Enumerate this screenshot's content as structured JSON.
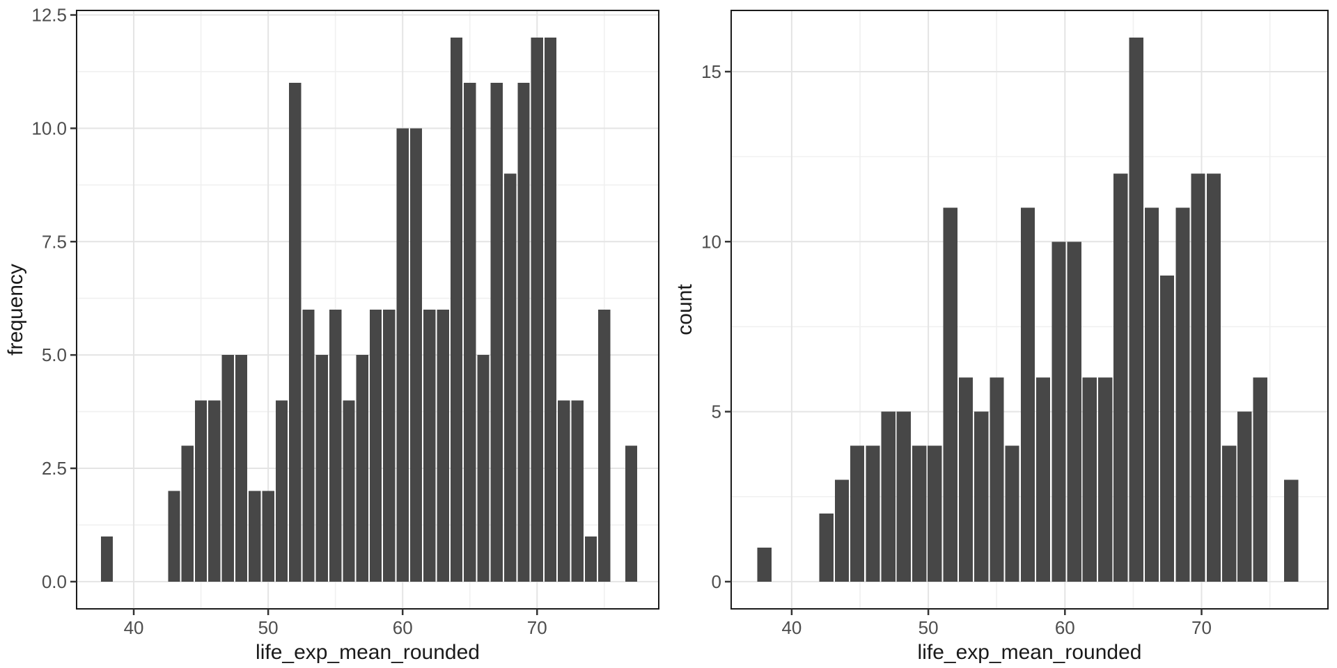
{
  "theme": {
    "background": "#ffffff",
    "bar_color": "#474747",
    "panel_border": "#1a1a1a",
    "grid_major": "#e4e4e4",
    "grid_minor": "#f0f0f0",
    "tick_mark_color": "#333333",
    "tick_label_color": "#4d4d4d",
    "axis_title_color": "#1a1a1a"
  },
  "chart_data": [
    {
      "type": "bar",
      "subtype": "histogram",
      "title": "",
      "xlabel": "life_exp_mean_rounded",
      "ylabel": "frequency",
      "grid": true,
      "legend": false,
      "binwidth": 1,
      "x_domain": [
        35.75,
        79.05
      ],
      "y_domain": [
        -0.6,
        12.6
      ],
      "x_ticks": [
        {
          "v": 40,
          "label": "40"
        },
        {
          "v": 50,
          "label": "50"
        },
        {
          "v": 60,
          "label": "60"
        },
        {
          "v": 70,
          "label": "70"
        }
      ],
      "x_minor": [
        45,
        55,
        65,
        75
      ],
      "y_ticks": [
        {
          "v": 0,
          "label": "0.0"
        },
        {
          "v": 2.5,
          "label": "2.5"
        },
        {
          "v": 5,
          "label": "5.0"
        },
        {
          "v": 7.5,
          "label": "7.5"
        },
        {
          "v": 10,
          "label": "10.0"
        },
        {
          "v": 12.5,
          "label": "12.5"
        }
      ],
      "y_minor": [
        1.25,
        3.75,
        6.25,
        8.75,
        11.25
      ],
      "bars": [
        {
          "x": 38,
          "count": 1
        },
        {
          "x": 43,
          "count": 2
        },
        {
          "x": 44,
          "count": 3
        },
        {
          "x": 45,
          "count": 4
        },
        {
          "x": 46,
          "count": 4
        },
        {
          "x": 47,
          "count": 5
        },
        {
          "x": 48,
          "count": 5
        },
        {
          "x": 49,
          "count": 2
        },
        {
          "x": 50,
          "count": 2
        },
        {
          "x": 51,
          "count": 4
        },
        {
          "x": 52,
          "count": 11
        },
        {
          "x": 53,
          "count": 6
        },
        {
          "x": 54,
          "count": 5
        },
        {
          "x": 55,
          "count": 6
        },
        {
          "x": 56,
          "count": 4
        },
        {
          "x": 57,
          "count": 5
        },
        {
          "x": 58,
          "count": 6
        },
        {
          "x": 59,
          "count": 6
        },
        {
          "x": 60,
          "count": 10
        },
        {
          "x": 61,
          "count": 10
        },
        {
          "x": 62,
          "count": 6
        },
        {
          "x": 63,
          "count": 6
        },
        {
          "x": 64,
          "count": 12
        },
        {
          "x": 65,
          "count": 11
        },
        {
          "x": 66,
          "count": 5
        },
        {
          "x": 67,
          "count": 11
        },
        {
          "x": 68,
          "count": 9
        },
        {
          "x": 69,
          "count": 11
        },
        {
          "x": 70,
          "count": 12
        },
        {
          "x": 71,
          "count": 12
        },
        {
          "x": 72,
          "count": 4
        },
        {
          "x": 73,
          "count": 4
        },
        {
          "x": 74,
          "count": 1
        },
        {
          "x": 75,
          "count": 6
        },
        {
          "x": 77,
          "count": 3
        }
      ]
    },
    {
      "type": "bar",
      "subtype": "histogram",
      "title": "",
      "xlabel": "life_exp_mean_rounded",
      "ylabel": "count",
      "grid": true,
      "legend": false,
      "binwidth": 1.134,
      "x_domain": [
        35.57,
        79.25
      ],
      "y_domain": [
        -0.8,
        16.8
      ],
      "x_ticks": [
        {
          "v": 40,
          "label": "40"
        },
        {
          "v": 50,
          "label": "50"
        },
        {
          "v": 60,
          "label": "60"
        },
        {
          "v": 70,
          "label": "70"
        }
      ],
      "x_minor": [
        45,
        55,
        65,
        75
      ],
      "y_ticks": [
        {
          "v": 0,
          "label": "0"
        },
        {
          "v": 5,
          "label": "5"
        },
        {
          "v": 10,
          "label": "10"
        },
        {
          "v": 15,
          "label": "15"
        }
      ],
      "y_minor": [
        2.5,
        7.5,
        12.5
      ],
      "bars": [
        {
          "x": 38.0,
          "count": 1
        },
        {
          "x": 42.54,
          "count": 2
        },
        {
          "x": 43.67,
          "count": 3
        },
        {
          "x": 44.8,
          "count": 4
        },
        {
          "x": 45.94,
          "count": 4
        },
        {
          "x": 47.07,
          "count": 5
        },
        {
          "x": 48.2,
          "count": 5
        },
        {
          "x": 49.34,
          "count": 4
        },
        {
          "x": 50.47,
          "count": 4
        },
        {
          "x": 51.61,
          "count": 11
        },
        {
          "x": 52.74,
          "count": 6
        },
        {
          "x": 53.88,
          "count": 5
        },
        {
          "x": 55.01,
          "count": 6
        },
        {
          "x": 56.14,
          "count": 4
        },
        {
          "x": 57.28,
          "count": 11
        },
        {
          "x": 58.41,
          "count": 6
        },
        {
          "x": 59.55,
          "count": 10
        },
        {
          "x": 60.68,
          "count": 10
        },
        {
          "x": 61.81,
          "count": 6
        },
        {
          "x": 62.95,
          "count": 6
        },
        {
          "x": 64.08,
          "count": 12
        },
        {
          "x": 65.22,
          "count": 16
        },
        {
          "x": 66.35,
          "count": 11
        },
        {
          "x": 67.48,
          "count": 9
        },
        {
          "x": 68.62,
          "count": 11
        },
        {
          "x": 69.75,
          "count": 12
        },
        {
          "x": 70.89,
          "count": 12
        },
        {
          "x": 72.02,
          "count": 4
        },
        {
          "x": 73.15,
          "count": 5
        },
        {
          "x": 74.29,
          "count": 6
        },
        {
          "x": 76.56,
          "count": 3
        }
      ]
    }
  ]
}
